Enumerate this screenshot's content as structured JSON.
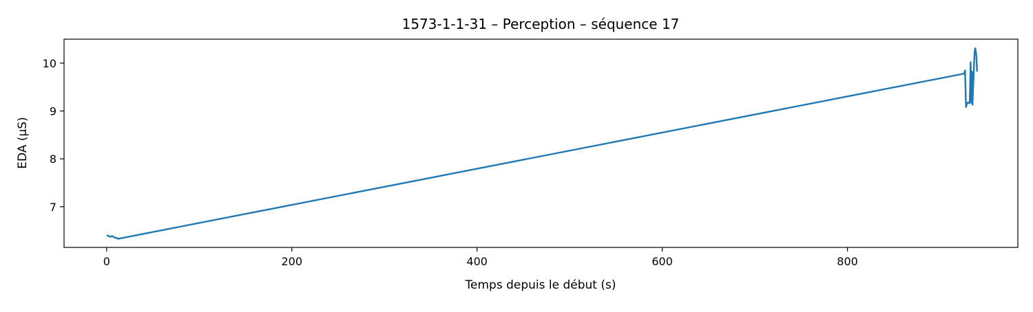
{
  "chart_data": {
    "type": "line",
    "title": "1573-1-1-31 – Perception – séquence 17",
    "xlabel": "Temps depuis le début (s)",
    "ylabel": "EDA (µS)",
    "xlim": [
      -46,
      984
    ],
    "ylim": [
      6.15,
      10.5
    ],
    "x_ticks": [
      0,
      200,
      400,
      600,
      800
    ],
    "y_ticks": [
      7,
      8,
      9,
      10
    ],
    "grid": false,
    "legend": "none",
    "series": [
      {
        "color": "#1f77b4",
        "x": [
          0,
          2,
          4,
          6,
          8,
          10,
          13,
          15,
          926,
          927,
          928,
          929,
          930,
          932,
          933,
          934,
          934.5,
          935,
          936,
          937,
          937.5,
          938,
          939,
          940
        ],
        "y": [
          6.4,
          6.39,
          6.37,
          6.39,
          6.36,
          6.35,
          6.33,
          6.34,
          9.78,
          9.85,
          9.08,
          9.15,
          9.18,
          9.16,
          10.02,
          9.17,
          9.82,
          9.13,
          9.62,
          10.13,
          10.27,
          10.31,
          10.2,
          9.82
        ]
      }
    ]
  }
}
